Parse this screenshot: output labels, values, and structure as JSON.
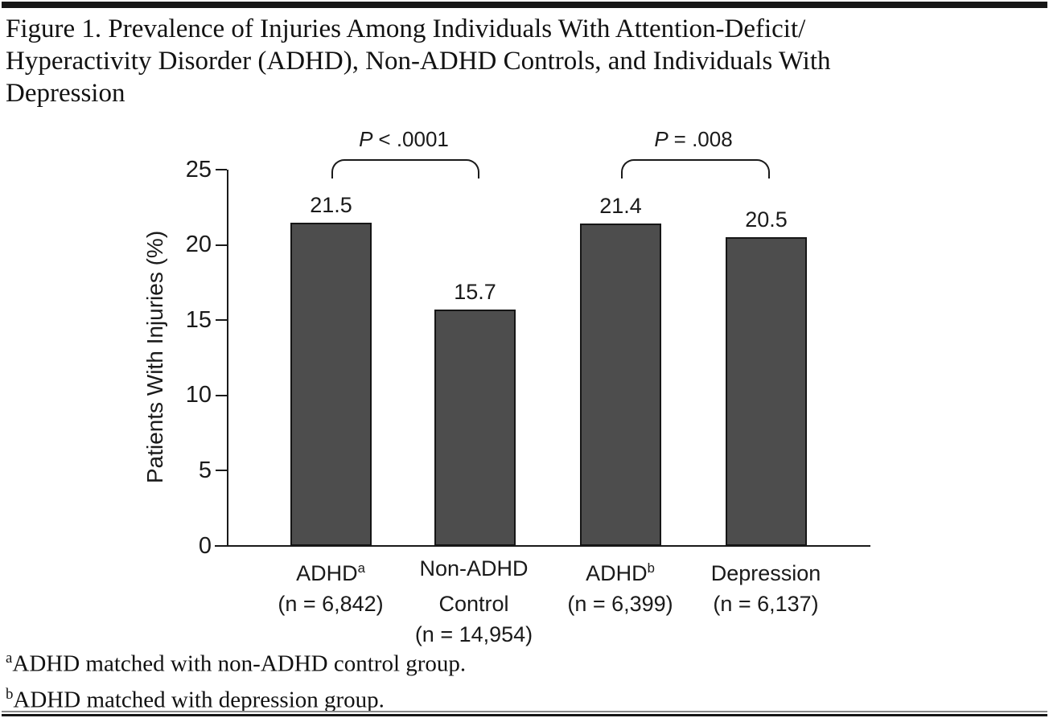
{
  "figure": {
    "title_lines": [
      "Figure 1. Prevalence of Injuries Among Individuals With Attention-Deficit/",
      "Hyperactivity Disorder (ADHD), Non-ADHD Controls, and Individuals With",
      "Depression"
    ],
    "footnotes": [
      {
        "sup": "a",
        "text": "ADHD matched with non-ADHD control group."
      },
      {
        "sup": "b",
        "text": "ADHD matched with depression group."
      }
    ]
  },
  "chart_data": {
    "type": "bar",
    "ylabel": "Patients With Injuries (%)",
    "xlabel": "",
    "ylim": [
      0,
      25
    ],
    "yticks": [
      0,
      5,
      10,
      15,
      20,
      25
    ],
    "grid": false,
    "legend": false,
    "bar_color": "#4d4d4d",
    "bar_border_color": "#161616",
    "categories": [
      {
        "label": "ADHD",
        "sup": "a",
        "n_label": "(n = 6,842)"
      },
      {
        "label": "Non-ADHD Control",
        "sup": "",
        "n_label": "(n = 14,954)"
      },
      {
        "label": "ADHD",
        "sup": "b",
        "n_label": "(n = 6,399)"
      },
      {
        "label": "Depression",
        "sup": "",
        "n_label": "(n = 6,137)"
      }
    ],
    "values": [
      21.5,
      15.7,
      21.4,
      20.5
    ],
    "annotations": [
      {
        "p_italic": "P",
        "comparison": "< .0001",
        "from_bar": 0,
        "to_bar": 1
      },
      {
        "p_italic": "P",
        "comparison": "= .008",
        "from_bar": 2,
        "to_bar": 3
      }
    ]
  }
}
